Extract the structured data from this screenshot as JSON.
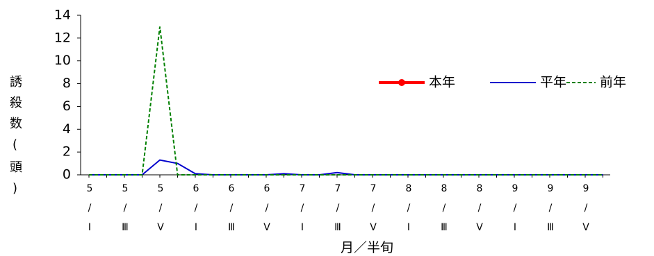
{
  "chart_data": {
    "type": "line",
    "y_label": "誘殺数(頭)",
    "x_label": "月／半旬",
    "categories": [
      "5/Ⅰ",
      null,
      "5/Ⅲ",
      null,
      "5/Ⅴ",
      null,
      "6/Ⅰ",
      null,
      "6/Ⅲ",
      null,
      "6/Ⅴ",
      null,
      "7/Ⅰ",
      null,
      "7/Ⅲ",
      null,
      "7/Ⅴ",
      null,
      "8/Ⅰ",
      null,
      "8/Ⅲ",
      null,
      "8/Ⅴ",
      null,
      "9/Ⅰ",
      null,
      "9/Ⅲ",
      null,
      "9/Ⅴ",
      null
    ],
    "series": [
      {
        "name": "本年",
        "color": "#ff0000",
        "marker": "circle",
        "dash": false,
        "values": [
          null,
          null,
          null,
          null,
          null,
          null,
          null,
          null,
          null,
          null,
          null,
          null,
          null,
          null,
          null,
          null,
          null,
          null,
          null,
          null,
          null,
          null,
          null,
          null,
          null,
          null,
          null,
          null,
          null,
          null
        ]
      },
      {
        "name": "平年",
        "color": "#0000cc",
        "dash": false,
        "values": [
          0,
          0,
          0,
          0,
          1.3,
          1.0,
          0.1,
          0,
          0,
          0,
          0,
          0.1,
          0,
          0,
          0.2,
          0,
          0,
          0,
          0,
          0,
          0,
          0,
          0,
          0,
          0,
          0,
          0,
          0,
          0,
          0
        ]
      },
      {
        "name": "前年",
        "color": "#008000",
        "dash": true,
        "values": [
          0,
          0,
          0,
          0,
          13,
          0,
          0,
          0,
          0,
          0,
          0,
          0,
          0,
          0,
          0,
          0,
          0,
          0,
          0,
          0,
          0,
          0,
          0,
          0,
          0,
          0,
          0,
          0,
          0,
          0
        ]
      }
    ],
    "ylim": [
      0,
      14
    ],
    "yticks": [
      0,
      2,
      4,
      6,
      8,
      10,
      12,
      14
    ],
    "grid": false
  }
}
